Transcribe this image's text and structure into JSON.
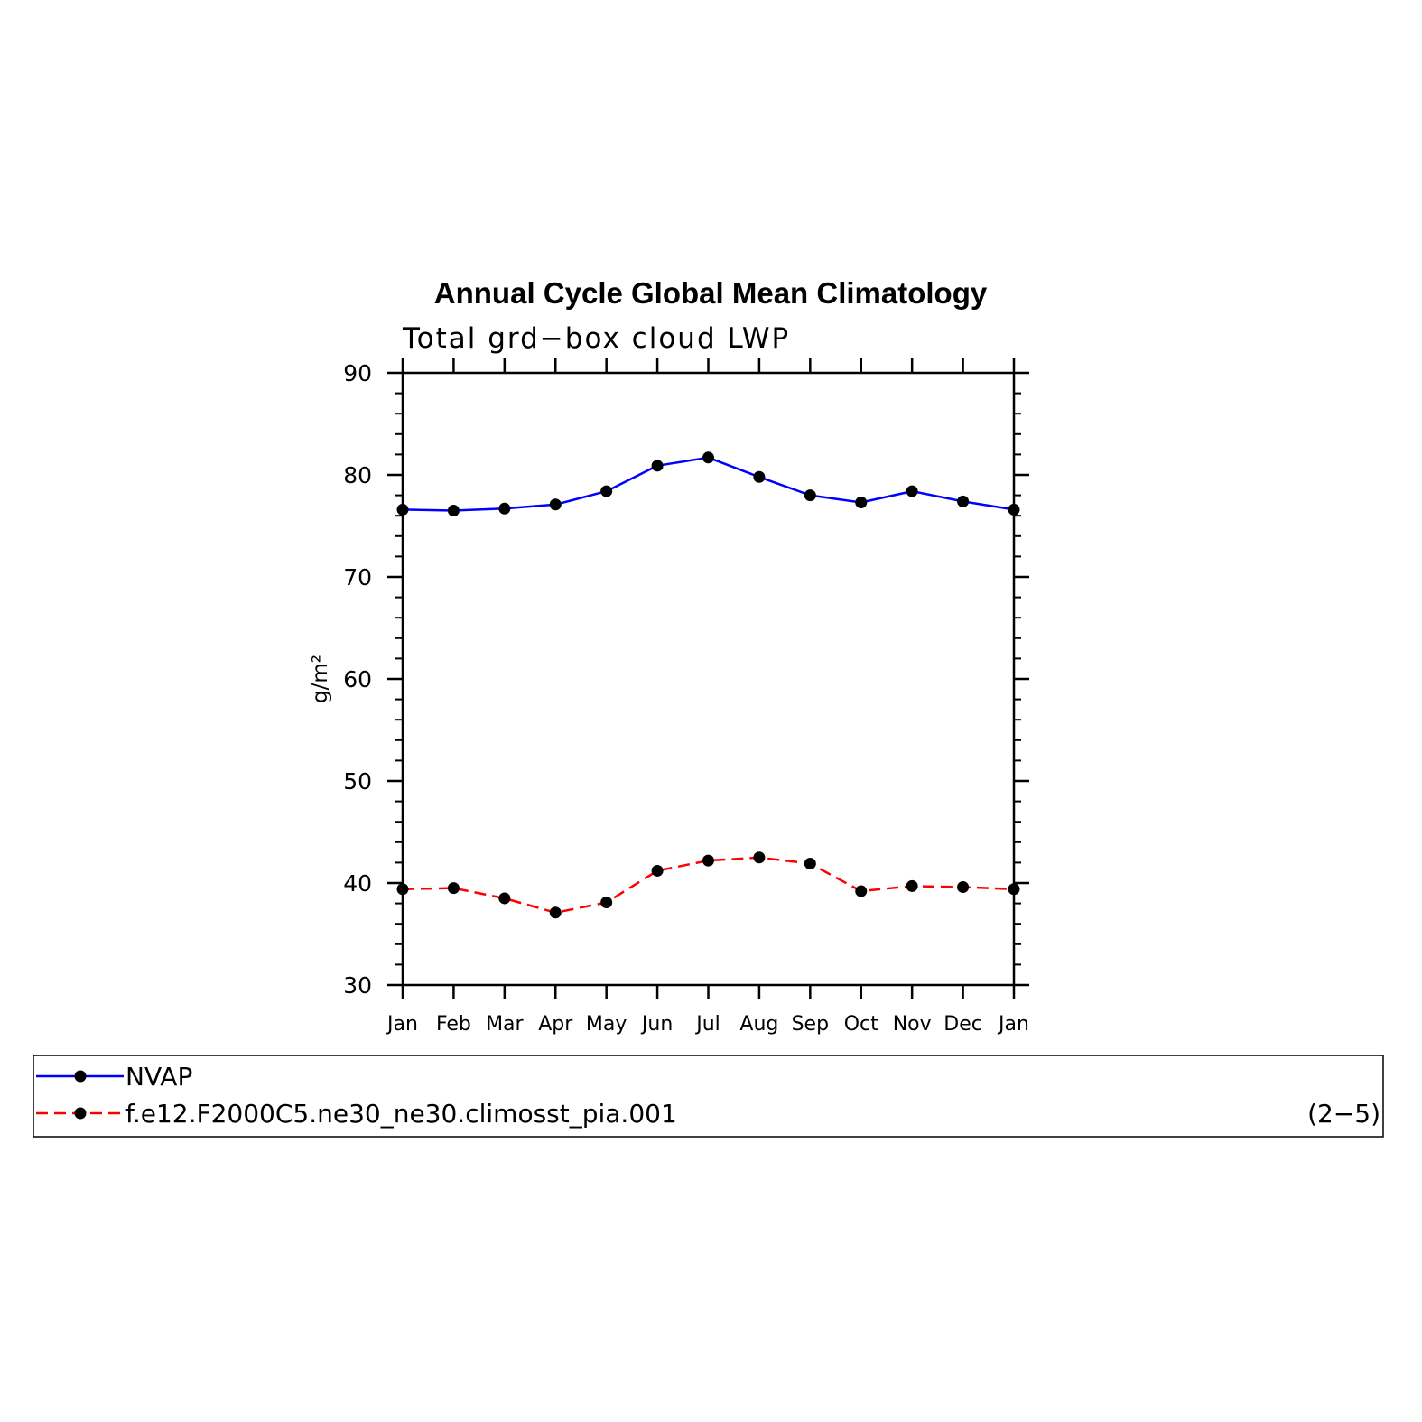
{
  "chart_data": {
    "type": "line",
    "title": "Annual Cycle Global Mean Climatology",
    "subtitle": "Total grd−box cloud LWP",
    "ylabel": "g/m²",
    "xlabel": "",
    "categories": [
      "Jan",
      "Feb",
      "Mar",
      "Apr",
      "May",
      "Jun",
      "Jul",
      "Aug",
      "Sep",
      "Oct",
      "Nov",
      "Dec",
      "Jan"
    ],
    "ylim": [
      30,
      90
    ],
    "yticks": [
      30,
      40,
      50,
      60,
      70,
      80,
      90
    ],
    "grid": false,
    "legend_position": "bottom",
    "series": [
      {
        "name": "NVAP",
        "color": "#0000ff",
        "dash": "solid",
        "marker": "dot",
        "values": [
          76.6,
          76.5,
          76.7,
          77.1,
          78.4,
          80.9,
          81.7,
          79.8,
          78.0,
          77.3,
          78.4,
          77.4,
          76.6
        ]
      },
      {
        "name": "f.e12.F2000C5.ne30_ne30.climosst_pia.001",
        "color": "#ff0000",
        "dash": "dashed",
        "marker": "dot",
        "values": [
          39.4,
          39.5,
          38.5,
          37.1,
          38.1,
          41.2,
          42.2,
          42.5,
          41.9,
          39.2,
          39.7,
          39.6,
          39.4
        ]
      }
    ],
    "legend_note": "(2−5)"
  }
}
